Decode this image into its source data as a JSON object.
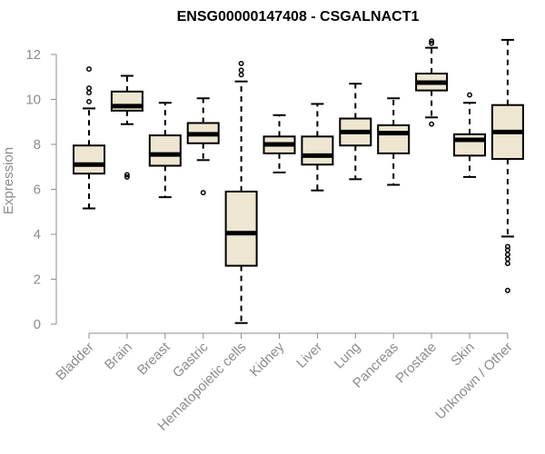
{
  "chart_data": {
    "type": "box",
    "title": "ENSG00000147408 - CSGALNACT1",
    "ylabel": "Expression",
    "ylim": [
      0,
      12.5
    ],
    "yticks": [
      0,
      2,
      4,
      6,
      8,
      10,
      12
    ],
    "box_fill": "#ede6d1",
    "categories": [
      "Bladder",
      "Brain",
      "Breast",
      "Gastric",
      "Hematopoietic cells",
      "Kidney",
      "Liver",
      "Lung",
      "Pancreas",
      "Prostate",
      "Skin",
      "Unknown / Other"
    ],
    "boxes": [
      {
        "q1": 6.7,
        "median": 7.1,
        "q3": 7.95,
        "whisker_low": 5.15,
        "whisker_high": 9.6,
        "outliers": [
          9.9,
          10.3,
          10.5,
          11.35
        ]
      },
      {
        "q1": 9.5,
        "median": 9.7,
        "q3": 10.35,
        "whisker_low": 8.9,
        "whisker_high": 11.05,
        "outliers": [
          6.55,
          6.65
        ]
      },
      {
        "q1": 7.05,
        "median": 7.55,
        "q3": 8.4,
        "whisker_low": 5.65,
        "whisker_high": 9.85,
        "outliers": []
      },
      {
        "q1": 8.05,
        "median": 8.45,
        "q3": 8.95,
        "whisker_low": 7.3,
        "whisker_high": 10.05,
        "outliers": [
          5.85
        ]
      },
      {
        "q1": 2.6,
        "median": 4.05,
        "q3": 5.9,
        "whisker_low": 0.05,
        "whisker_high": 10.8,
        "outliers": [
          11.1,
          11.3,
          11.6
        ]
      },
      {
        "q1": 7.6,
        "median": 8.0,
        "q3": 8.35,
        "whisker_low": 6.75,
        "whisker_high": 9.3,
        "outliers": []
      },
      {
        "q1": 7.1,
        "median": 7.5,
        "q3": 8.35,
        "whisker_low": 5.95,
        "whisker_high": 9.8,
        "outliers": []
      },
      {
        "q1": 7.95,
        "median": 8.55,
        "q3": 9.15,
        "whisker_low": 6.45,
        "whisker_high": 10.7,
        "outliers": []
      },
      {
        "q1": 7.6,
        "median": 8.5,
        "q3": 8.85,
        "whisker_low": 6.2,
        "whisker_high": 10.05,
        "outliers": []
      },
      {
        "q1": 10.4,
        "median": 10.75,
        "q3": 11.15,
        "whisker_low": 9.2,
        "whisker_high": 12.3,
        "outliers": [
          8.9,
          12.5,
          12.6
        ]
      },
      {
        "q1": 7.5,
        "median": 8.2,
        "q3": 8.45,
        "whisker_low": 6.55,
        "whisker_high": 9.85,
        "outliers": [
          10.2
        ]
      },
      {
        "q1": 7.35,
        "median": 8.55,
        "q3": 9.75,
        "whisker_low": 3.9,
        "whisker_high": 12.65,
        "outliers": [
          1.5,
          2.7,
          2.9,
          3.1,
          3.3,
          3.45
        ]
      }
    ]
  }
}
